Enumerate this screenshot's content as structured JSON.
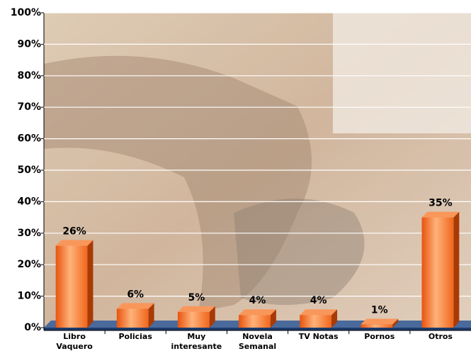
{
  "chart_data": {
    "type": "bar",
    "categories": [
      "Libro Vaquero",
      "Policias",
      "Muy interesante",
      "Novela Semanal",
      "TV Notas",
      "Pornos",
      "Otros"
    ],
    "values": [
      26,
      6,
      5,
      4,
      4,
      1,
      35
    ],
    "value_labels": [
      "26%",
      "6%",
      "5%",
      "4%",
      "4%",
      "1%",
      "35%"
    ],
    "color": "#f26a1b",
    "ylim": [
      0,
      100
    ],
    "yticks": [
      {
        "value": 0,
        "label": "0%"
      },
      {
        "value": 10,
        "label": "10%"
      },
      {
        "value": 20,
        "label": "20%"
      },
      {
        "value": 30,
        "label": "30%"
      },
      {
        "value": 40,
        "label": "40%"
      },
      {
        "value": 50,
        "label": "50%"
      },
      {
        "value": 60,
        "label": "60%"
      },
      {
        "value": 70,
        "label": "70%"
      },
      {
        "value": 80,
        "label": "80%"
      },
      {
        "value": 90,
        "label": "90%"
      },
      {
        "value": 100,
        "label": "100%"
      }
    ],
    "grid": true
  }
}
